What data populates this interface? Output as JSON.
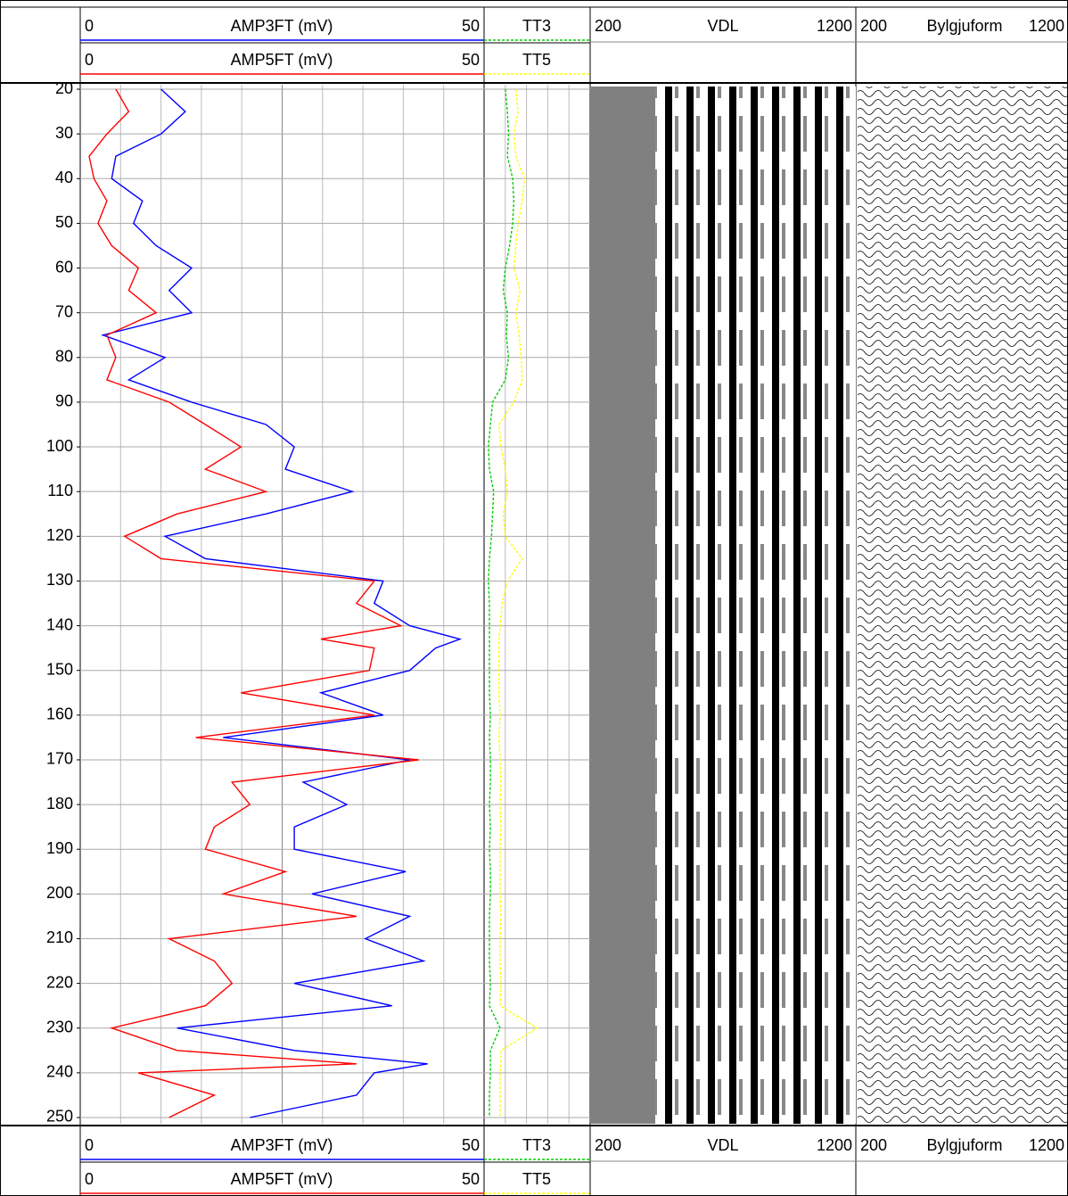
{
  "chart_data": {
    "type": "well-log",
    "ylim": [
      18,
      251
    ],
    "yticks": [
      20,
      30,
      40,
      50,
      60,
      70,
      80,
      90,
      100,
      110,
      120,
      130,
      140,
      150,
      160,
      170,
      180,
      190,
      200,
      210,
      220,
      230,
      240,
      250
    ],
    "depth": [
      20,
      25,
      30,
      35,
      40,
      45,
      50,
      55,
      60,
      65,
      70,
      75,
      80,
      85,
      90,
      95,
      100,
      105,
      110,
      115,
      120,
      125,
      130,
      135,
      140,
      143,
      145,
      150,
      155,
      160,
      165,
      170,
      175,
      180,
      185,
      190,
      195,
      200,
      205,
      210,
      215,
      220,
      225,
      230,
      235,
      238,
      240,
      245,
      250
    ],
    "tracks": [
      {
        "xlim": [
          0,
          50
        ],
        "series": [
          {
            "name": "AMP3FT (mV)",
            "color": "#0000ff",
            "values": [
              10,
              13,
              10,
              4.4,
              3.9,
              7.7,
              6.6,
              9.4,
              13.8,
              11,
              13.8,
              2.8,
              10.5,
              6,
              13.8,
              23,
              26.5,
              25.4,
              33.7,
              23,
              10.5,
              15.5,
              37.5,
              36.4,
              40.8,
              47,
              44,
              40.8,
              29.8,
              37.5,
              17.7,
              40.8,
              27.6,
              33,
              26.5,
              26.5,
              40.3,
              28.7,
              40.8,
              35.3,
              42.5,
              26.5,
              38.6,
              12,
              26.5,
              43,
              36.4,
              34.2,
              21
            ]
          },
          {
            "name": "AMP5FT (mV)",
            "color": "#ff0000",
            "values": [
              4.4,
              6,
              3.3,
              1.1,
              1.7,
              3.3,
              2.2,
              3.9,
              7.2,
              6,
              9.4,
              3.3,
              4.4,
              3.3,
              11,
              15.5,
              19.9,
              15.5,
              23,
              12,
              5.5,
              10,
              36.4,
              34.2,
              39.7,
              29.8,
              36.4,
              35.8,
              19.9,
              36.4,
              14.3,
              41.9,
              18.8,
              21,
              16.6,
              15.5,
              25.4,
              17.7,
              34.2,
              11,
              16.6,
              18.8,
              15.5,
              3.9,
              12,
              34.2,
              7.2,
              16.6,
              11
            ]
          }
        ]
      },
      {
        "xlim": [
          0,
          100
        ],
        "series": [
          {
            "name": "TT3",
            "color": "#00cc00",
            "values": [
              20,
              22,
              23,
              22,
              27,
              28,
              27,
              24,
              20,
              18,
              22,
              21,
              23,
              20,
              8,
              6,
              4,
              5,
              9,
              8,
              7,
              5,
              4,
              5,
              5,
              5,
              5,
              5,
              5,
              6,
              5,
              6,
              6,
              5,
              6,
              5,
              6,
              6,
              5,
              5,
              5,
              6,
              5,
              15,
              6,
              6,
              6,
              5,
              5
            ]
          },
          {
            "name": "TT5",
            "color": "#ffff00",
            "values": [
              30,
              32,
              28,
              30,
              38,
              36,
              32,
              30,
              28,
              34,
              30,
              33,
              35,
              36,
              28,
              14,
              16,
              20,
              22,
              18,
              20,
              36,
              22,
              17,
              15,
              14,
              14,
              14,
              14,
              15,
              14,
              15,
              16,
              15,
              16,
              15,
              15,
              15,
              16,
              15,
              15,
              16,
              15,
              50,
              16,
              16,
              15,
              15,
              15
            ]
          }
        ]
      },
      {
        "name": "VDL",
        "xlim": [
          200,
          1200
        ]
      },
      {
        "name": "Bylgjuform",
        "xlim": [
          200,
          1200
        ]
      }
    ]
  }
}
